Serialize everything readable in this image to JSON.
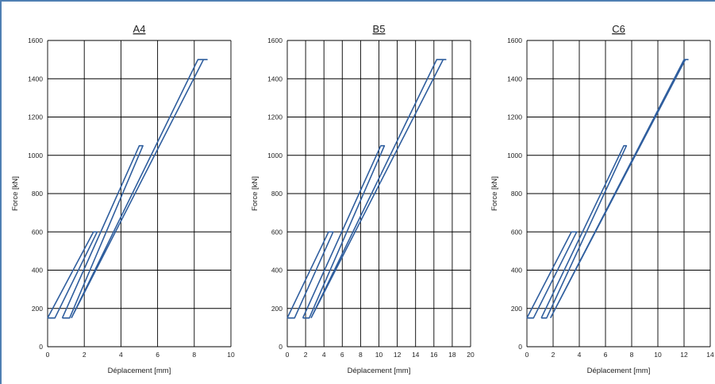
{
  "chart_data": [
    {
      "type": "line",
      "title": "A4",
      "xlabel": "Déplacement [mm]",
      "ylabel": "Force [kN]",
      "xlim": [
        0,
        10
      ],
      "ylim": [
        0,
        1600
      ],
      "xticks": [
        0,
        2,
        4,
        6,
        8,
        10
      ],
      "yticks": [
        0,
        200,
        400,
        600,
        800,
        1000,
        1200,
        1400,
        1600
      ],
      "grid": true,
      "series": [
        {
          "x": [
            0,
            2.5,
            2.7,
            0.4,
            0
          ],
          "y": [
            150,
            600,
            600,
            150,
            150
          ]
        },
        {
          "x": [
            0.8,
            5.0,
            5.2,
            1.2,
            0.8
          ],
          "y": [
            150,
            1050,
            1050,
            150,
            150
          ]
        },
        {
          "x": [
            1.3,
            8.2,
            8.7,
            8.5,
            1.3
          ],
          "y": [
            150,
            1500,
            1500,
            1500,
            150
          ]
        }
      ]
    },
    {
      "type": "line",
      "title": "B5",
      "xlabel": "Déplacement [mm]",
      "ylabel": "Force [kN]",
      "xlim": [
        0,
        20
      ],
      "ylim": [
        0,
        1600
      ],
      "xticks": [
        0,
        2,
        4,
        6,
        8,
        10,
        12,
        14,
        16,
        18,
        20
      ],
      "yticks": [
        0,
        200,
        400,
        600,
        800,
        1000,
        1200,
        1400,
        1600
      ],
      "grid": true,
      "series": [
        {
          "x": [
            0,
            4.5,
            5.0,
            0.8,
            0
          ],
          "y": [
            150,
            600,
            600,
            150,
            150
          ]
        },
        {
          "x": [
            1.7,
            10.2,
            10.6,
            2.4,
            1.7
          ],
          "y": [
            150,
            1050,
            1050,
            150,
            150
          ]
        },
        {
          "x": [
            2.6,
            16.3,
            17.3,
            17.0,
            2.6
          ],
          "y": [
            150,
            1500,
            1500,
            1500,
            150
          ]
        }
      ]
    },
    {
      "type": "line",
      "title": "C6",
      "xlabel": "Déplacement [mm]",
      "ylabel": "Force [kN]",
      "xlim": [
        0,
        14
      ],
      "ylim": [
        0,
        1600
      ],
      "xticks": [
        0,
        2,
        4,
        6,
        8,
        10,
        12,
        14
      ],
      "yticks": [
        0,
        200,
        400,
        600,
        800,
        1000,
        1200,
        1400,
        1600
      ],
      "grid": true,
      "series": [
        {
          "x": [
            0,
            3.4,
            3.8,
            0.5,
            0
          ],
          "y": [
            150,
            600,
            600,
            150,
            150
          ]
        },
        {
          "x": [
            1.1,
            7.4,
            7.6,
            1.5,
            1.1
          ],
          "y": [
            150,
            1050,
            1050,
            150,
            150
          ]
        },
        {
          "x": [
            1.8,
            12.0,
            12.3,
            12.1,
            1.8
          ],
          "y": [
            150,
            1500,
            1500,
            1500,
            150
          ]
        }
      ]
    }
  ],
  "colors": {
    "series": "#2f5e9e",
    "grid": "#000000",
    "frame": "#4f7fb3"
  }
}
